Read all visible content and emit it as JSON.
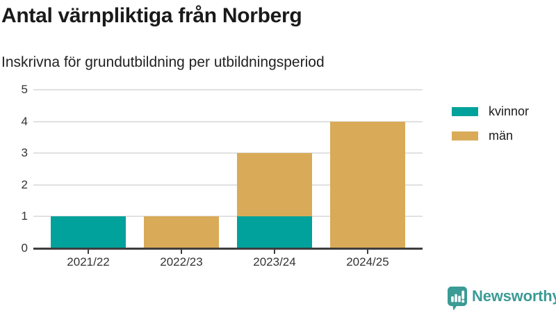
{
  "page": {
    "title": "Antal värnpliktiga från Norberg",
    "subtitle": "Inskrivna för grundutbildning per utbildningsperiod"
  },
  "chart_data": {
    "type": "bar",
    "stacked": true,
    "title": "Antal värnpliktiga från Norberg",
    "subtitle": "Inskrivna för grundutbildning per utbildningsperiod",
    "categories": [
      "2021/22",
      "2022/23",
      "2023/24",
      "2024/25"
    ],
    "series": [
      {
        "name": "kvinnor",
        "color": "#00a29b",
        "values": [
          1,
          0,
          1,
          0
        ]
      },
      {
        "name": "män",
        "color": "#d9ab58",
        "values": [
          0,
          1,
          2,
          4
        ]
      }
    ],
    "totals": [
      1,
      1,
      3,
      4
    ],
    "xlabel": "",
    "ylabel": "",
    "ylim": [
      0,
      5
    ],
    "yticks": [
      0,
      1,
      2,
      3,
      4,
      5
    ],
    "grid": true,
    "legend_position": "right",
    "colors": {
      "grid": "#e1e1e1",
      "axis": "#3d3d3d",
      "tick_text": "#333333"
    }
  },
  "footer": {
    "brand": "Newsworthy",
    "brand_color": "#3b9b95",
    "logo_icon": "bar-chart-speech-bubble"
  }
}
